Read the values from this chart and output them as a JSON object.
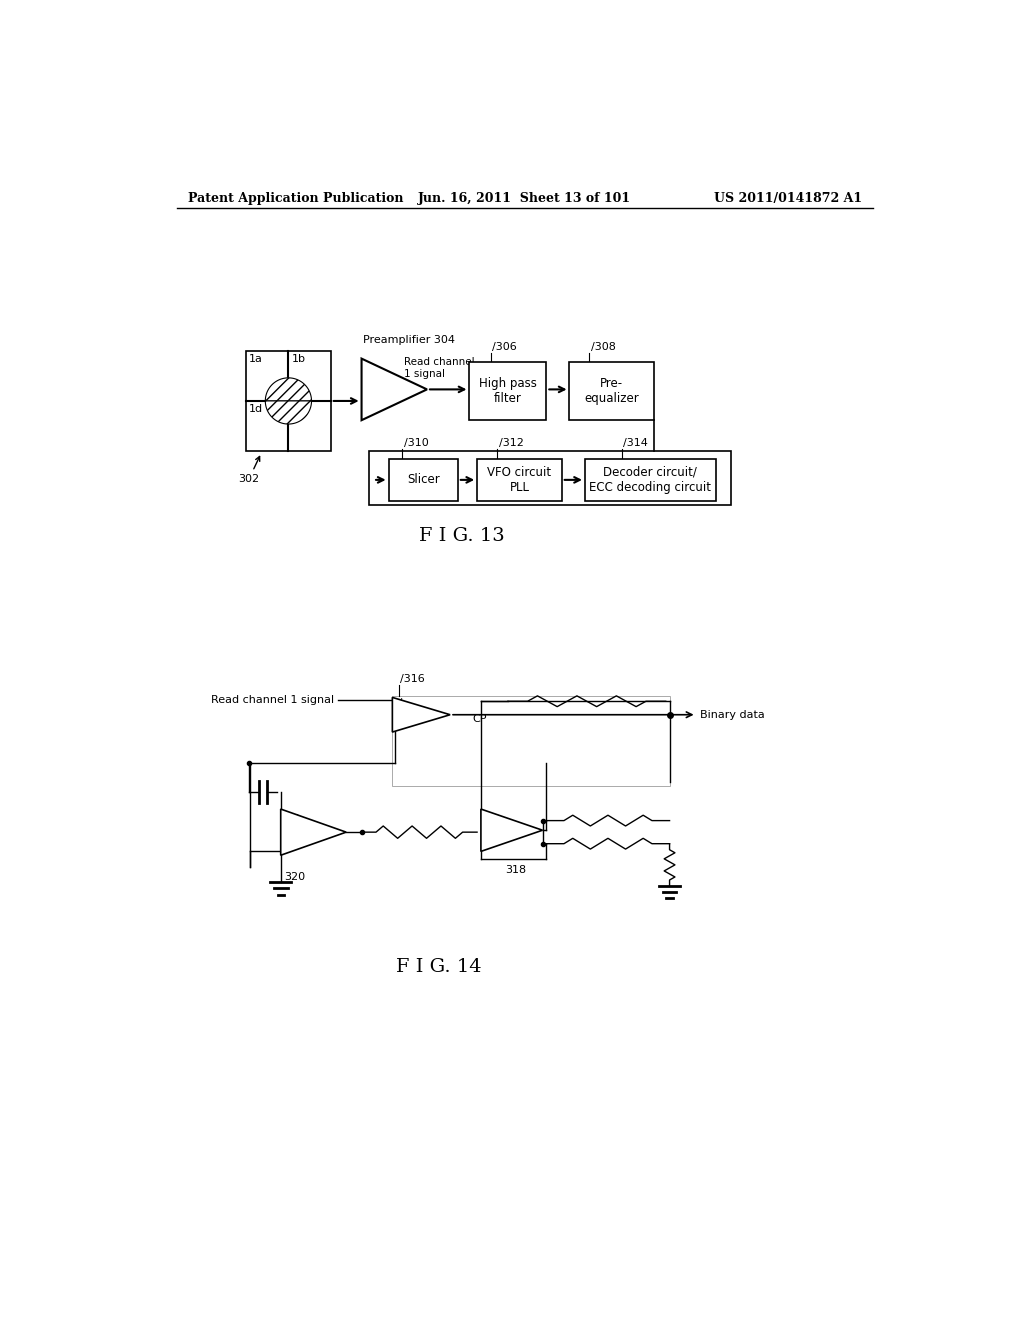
{
  "bg_color": "#ffffff",
  "header_left": "Patent Application Publication",
  "header_mid": "Jun. 16, 2011  Sheet 13 of 101",
  "header_right": "US 2011/0141872 A1",
  "fig13_label": "F I G. 13",
  "fig14_label": "F I G. 14"
}
